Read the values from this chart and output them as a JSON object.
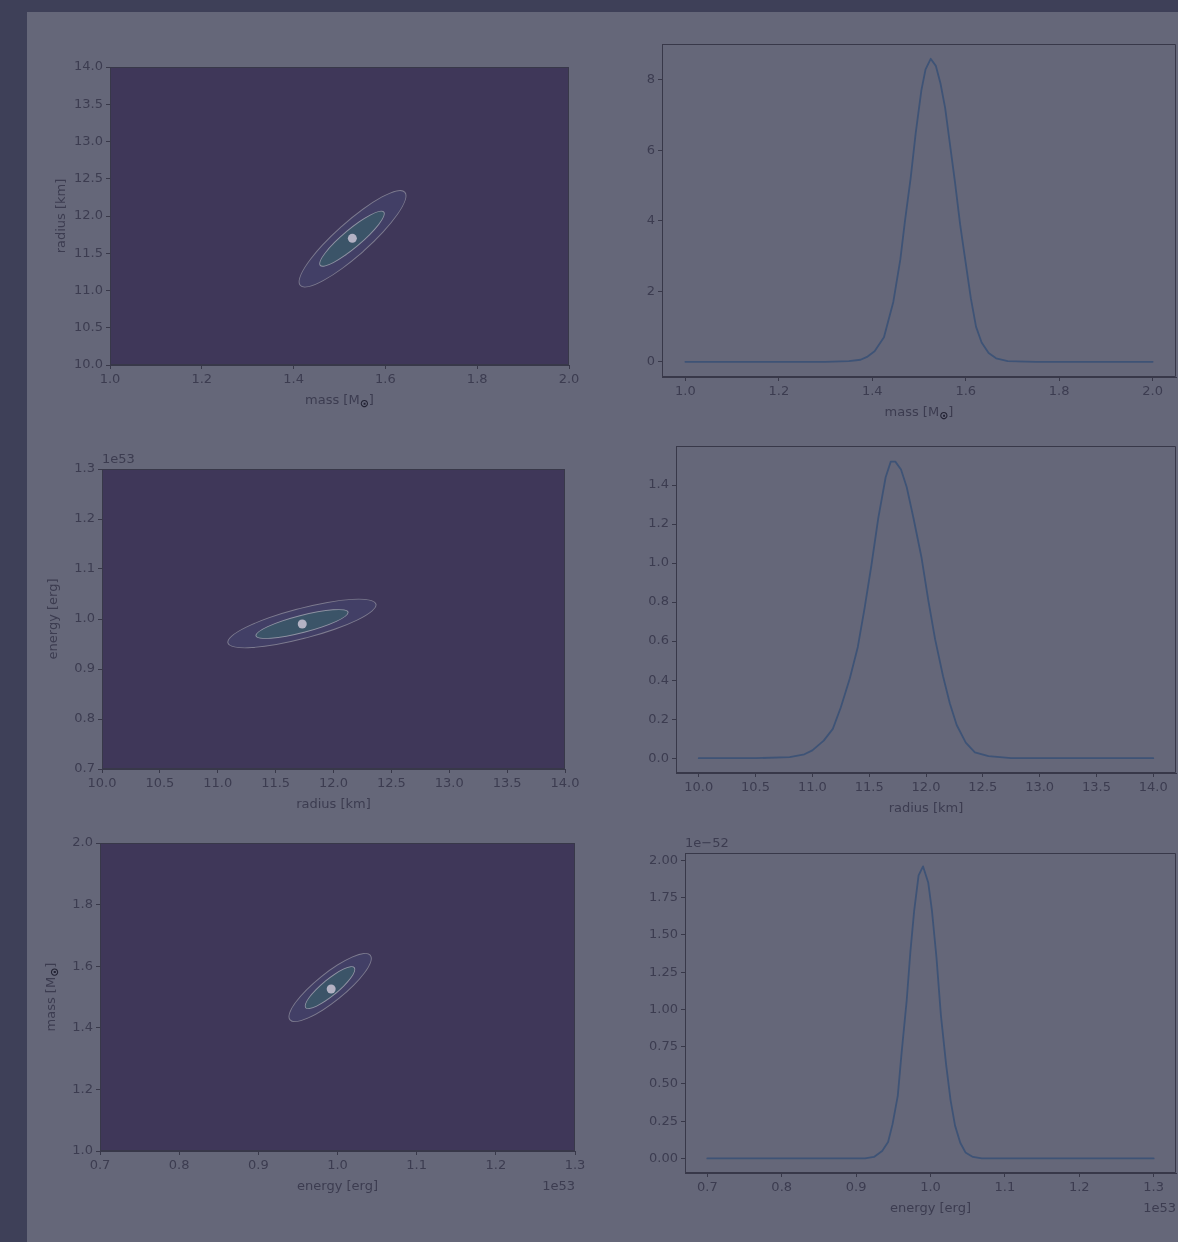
{
  "chart_data": [
    {
      "type": "scatter",
      "xlabel": "mass [M$_{⊙}$]",
      "ylabel": "radius [km]",
      "xlim": [
        1.0,
        2.0
      ],
      "xticks": [
        {
          "value": 1,
          "label": "1.0"
        },
        1.2,
        1.4,
        1.6,
        1.8,
        {
          "value": 2,
          "label": "2.0"
        }
      ],
      "ylim": [
        10,
        14
      ],
      "yticks": [
        {
          "value": 10,
          "label": "10.0"
        },
        10.5,
        {
          "value": 11,
          "label": "11.0"
        },
        11.5,
        {
          "value": 12,
          "label": "12.0"
        },
        12.5,
        {
          "value": 13,
          "label": "13.0"
        },
        13.5,
        {
          "value": 14,
          "label": "14.0"
        }
      ],
      "marker": "circle",
      "color": "#b4b2c4",
      "x": [
        1.528
      ],
      "values": [
        11.7
      ]
    },
    {
      "type": "line",
      "xlabel": "mass [M$_{⊙}$]",
      "xlim": [
        0.95,
        2.05
      ],
      "xticks": [
        {
          "value": 1,
          "label": "1.0"
        },
        1.2,
        1.4,
        1.6,
        1.8,
        {
          "value": 2,
          "label": "2.0"
        }
      ],
      "ylim": [
        -0.43,
        9.02
      ],
      "yticks": [
        0,
        2,
        4,
        6,
        8
      ],
      "marker": "none",
      "color": "#3e5376",
      "x": [
        1.0,
        1.1,
        1.2,
        1.3,
        1.35,
        1.375,
        1.39,
        1.405,
        1.425,
        1.445,
        1.46,
        1.47,
        1.482,
        1.493,
        1.505,
        1.514,
        1.525,
        1.536,
        1.546,
        1.556,
        1.565,
        1.577,
        1.588,
        1.6,
        1.611,
        1.622,
        1.634,
        1.649,
        1.665,
        1.69,
        1.75,
        1.8,
        1.9,
        2.0
      ],
      "values": [
        0,
        0,
        0,
        0,
        0.02,
        0.06,
        0.15,
        0.3,
        0.7,
        1.7,
        2.9,
        4.0,
        5.2,
        6.5,
        7.7,
        8.3,
        8.6,
        8.4,
        7.9,
        7.2,
        6.3,
        5.1,
        3.9,
        2.8,
        1.8,
        1.0,
        0.55,
        0.25,
        0.1,
        0.02,
        0,
        0,
        0,
        0
      ]
    },
    {
      "type": "scatter",
      "xlabel": "radius [km]",
      "ylabel": "energy [erg]",
      "xlim": [
        10,
        14
      ],
      "xticks": [
        {
          "value": 10,
          "label": "10.0"
        },
        10.5,
        {
          "value": 11,
          "label": "11.0"
        },
        11.5,
        {
          "value": 12,
          "label": "12.0"
        },
        12.5,
        {
          "value": 13,
          "label": "13.0"
        },
        13.5,
        {
          "value": 14,
          "label": "14.0"
        }
      ],
      "ylim": [
        0.7,
        1.3
      ],
      "yticks": [
        0.7,
        0.8,
        0.9,
        {
          "value": 1,
          "label": "1.0"
        },
        1.1,
        1.2,
        1.3
      ],
      "marker": "circle",
      "color": "#b4b2c4",
      "x": [
        11.73
      ],
      "values": [
        0.99
      ],
      "annotations": [
        "1e53"
      ]
    },
    {
      "type": "line",
      "xlabel": "radius [km]",
      "xlim": [
        9.8,
        14.2
      ],
      "xticks": [
        {
          "value": 10,
          "label": "10.0"
        },
        10.5,
        {
          "value": 11,
          "label": "11.0"
        },
        11.5,
        {
          "value": 12,
          "label": "12.0"
        },
        12.5,
        {
          "value": 13,
          "label": "13.0"
        },
        13.5,
        {
          "value": 14,
          "label": "14.0"
        }
      ],
      "ylim": [
        -0.076,
        1.6
      ],
      "yticks": [
        {
          "value": 0,
          "label": "0.0"
        },
        0.2,
        0.4,
        0.6,
        0.8,
        {
          "value": 1,
          "label": "1.0"
        },
        1.2,
        1.4
      ],
      "marker": "none",
      "color": "#3e5376",
      "x": [
        10.0,
        10.5,
        10.8,
        10.93,
        11.0,
        11.1,
        11.18,
        11.25,
        11.33,
        11.4,
        11.46,
        11.52,
        11.58,
        11.645,
        11.69,
        11.73,
        11.78,
        11.83,
        11.89,
        11.96,
        12.02,
        12.08,
        12.15,
        12.21,
        12.27,
        12.35,
        12.43,
        12.55,
        12.75,
        13.0,
        13.5,
        14.0
      ],
      "values": [
        0,
        0,
        0.005,
        0.02,
        0.04,
        0.09,
        0.15,
        0.26,
        0.41,
        0.57,
        0.77,
        0.99,
        1.23,
        1.44,
        1.52,
        1.52,
        1.48,
        1.39,
        1.23,
        1.03,
        0.81,
        0.61,
        0.42,
        0.28,
        0.17,
        0.08,
        0.03,
        0.01,
        0,
        0,
        0,
        0
      ]
    },
    {
      "type": "scatter",
      "xlabel": "energy [erg]",
      "ylabel": "mass [M$_{⊙}$]",
      "xlim": [
        0.7,
        1.3
      ],
      "xticks": [
        0.7,
        0.8,
        0.9,
        {
          "value": 1,
          "label": "1.0"
        },
        1.1,
        1.2,
        1.3
      ],
      "ylim": [
        1.0,
        2.0
      ],
      "yticks": [
        {
          "value": 1,
          "label": "1.0"
        },
        1.2,
        1.4,
        1.6,
        1.8,
        {
          "value": 2,
          "label": "2.0"
        }
      ],
      "marker": "circle",
      "color": "#b4b2c4",
      "x": [
        0.992
      ],
      "values": [
        1.526
      ],
      "annotations": [
        "1e53"
      ]
    },
    {
      "type": "line",
      "xlabel": "energy [erg]",
      "xlim": [
        0.67,
        1.33
      ],
      "xticks": [
        0.7,
        0.8,
        0.9,
        {
          "value": 1,
          "label": "1.0"
        },
        1.1,
        1.2,
        1.3
      ],
      "ylim": [
        -0.098,
        2.05
      ],
      "yticks": [
        {
          "value": 0,
          "label": "0.00"
        },
        0.25,
        {
          "value": 0.5,
          "label": "0.50"
        },
        0.75,
        {
          "value": 1,
          "label": "1.00"
        },
        1.25,
        {
          "value": 1.5,
          "label": "1.50"
        },
        1.75,
        {
          "value": 2,
          "label": "2.00"
        }
      ],
      "marker": "none",
      "color": "#3e5376",
      "annotations": [
        "1e−52",
        "1e53"
      ],
      "x": [
        0.7,
        0.8,
        0.9,
        0.912,
        0.924,
        0.935,
        0.943,
        0.949,
        0.956,
        0.961,
        0.968,
        0.973,
        0.978,
        0.984,
        0.99,
        0.997,
        1.002,
        1.008,
        1.014,
        1.021,
        1.027,
        1.033,
        1.04,
        1.047,
        1.057,
        1.069,
        1.1,
        1.2,
        1.3
      ],
      "values": [
        0,
        0,
        0,
        0,
        0.01,
        0.05,
        0.11,
        0.23,
        0.42,
        0.7,
        1.06,
        1.39,
        1.66,
        1.9,
        1.96,
        1.85,
        1.66,
        1.35,
        0.96,
        0.63,
        0.39,
        0.22,
        0.105,
        0.04,
        0.01,
        0,
        0,
        0,
        0
      ]
    }
  ]
}
